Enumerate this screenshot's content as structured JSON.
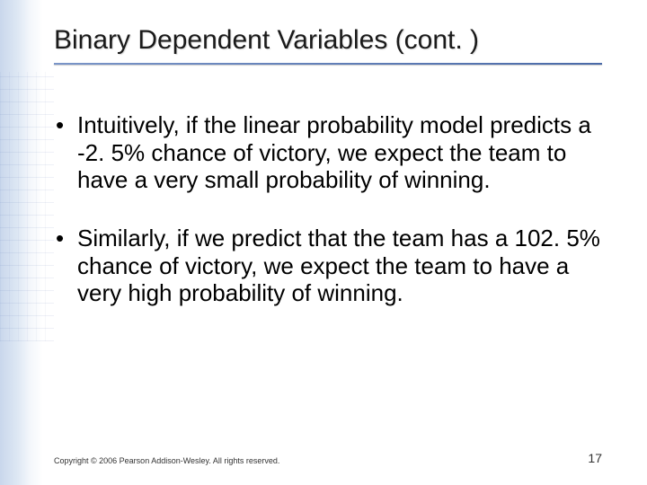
{
  "slide": {
    "title": "Binary Dependent Variables (cont. )",
    "bullets": [
      "Intuitively, if the linear probability model predicts a -2. 5% chance of victory, we expect the team to have a very small probability of winning.",
      "Similarly, if we predict that the team has a 102. 5% chance of victory, we expect the team to have a very high probability of winning."
    ],
    "copyright": "Copyright © 2006 Pearson Addison-Wesley. All rights reserved.",
    "page_number": "17"
  },
  "style": {
    "title_fontsize": 30,
    "body_fontsize": 26,
    "title_color": "#1a1a1a",
    "body_color": "#000000",
    "underline_gradient_from": "#7a95c8",
    "underline_gradient_to": "#4a6aa8",
    "decoration_tint": "#6e8cc8",
    "background_color": "#ffffff",
    "copyright_fontsize": 9,
    "pagenum_fontsize": 14
  }
}
